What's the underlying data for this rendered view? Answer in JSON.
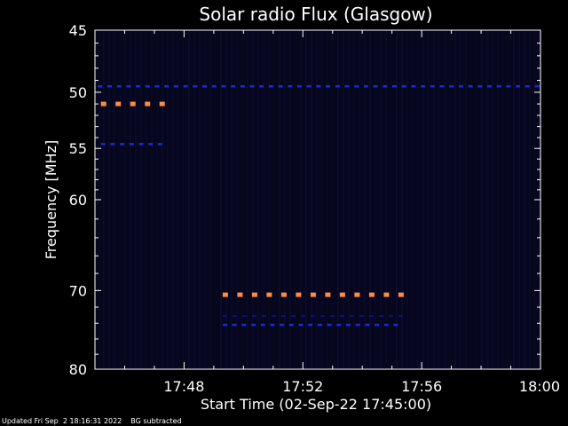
{
  "chart_data": {
    "type": "heatmap",
    "title": "Solar radio Flux (Glasgow)",
    "xlabel": "Start Time (02-Sep-22 17:45:00)",
    "ylabel": "Frequency [MHz]",
    "x_ticks": [
      "17:48",
      "17:52",
      "17:56",
      "18:00"
    ],
    "x_tick_minutes": [
      3,
      7,
      11,
      15
    ],
    "xlim_minutes": [
      0,
      15
    ],
    "y_ticks": [
      45,
      50,
      55,
      60,
      70,
      80
    ],
    "ylim": [
      45,
      80
    ],
    "y_scale": "log",
    "background_color": "#06061c",
    "signals": [
      {
        "freq": 49.5,
        "t_start": 0.1,
        "t_end": 15.0,
        "color": "#1a2ad8",
        "intensity": "low"
      },
      {
        "freq": 51.0,
        "t_start": 0.2,
        "t_end": 2.5,
        "color": "#ff8a40",
        "intensity": "high"
      },
      {
        "freq": 54.6,
        "t_start": 0.2,
        "t_end": 2.5,
        "color": "#1a2ad8",
        "intensity": "low"
      },
      {
        "freq": 70.5,
        "t_start": 4.3,
        "t_end": 10.4,
        "color": "#ff8a40",
        "intensity": "high"
      },
      {
        "freq": 73.1,
        "t_start": 4.3,
        "t_end": 10.4,
        "color": "#12188a",
        "intensity": "very-low"
      },
      {
        "freq": 74.2,
        "t_start": 4.3,
        "t_end": 10.4,
        "color": "#1a2ad8",
        "intensity": "low"
      }
    ]
  },
  "footer": {
    "updated": "Updated Fri Sep  2 18:16:31 2022",
    "note": "BG subtracted"
  }
}
